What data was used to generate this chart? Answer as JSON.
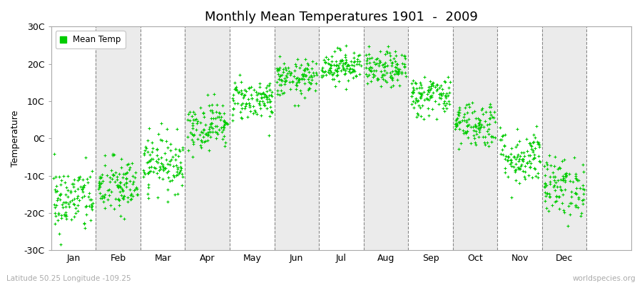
{
  "title": "Monthly Mean Temperatures 1901  -  2009",
  "ylabel": "Temperature",
  "subtitle_left": "Latitude 50.25 Longitude -109.25",
  "subtitle_right": "worldspecies.org",
  "ylim": [
    -30,
    30
  ],
  "yticks": [
    -30,
    -20,
    -10,
    0,
    10,
    20,
    30
  ],
  "ytick_labels": [
    "-30C",
    "-20C",
    "-10C",
    "0C",
    "10C",
    "20C",
    "30C"
  ],
  "months": [
    "Jan",
    "Feb",
    "Mar",
    "Apr",
    "May",
    "Jun",
    "Jul",
    "Aug",
    "Sep",
    "Oct",
    "Nov",
    "Dec"
  ],
  "dot_color": "#00CC00",
  "background_color": "#FFFFFF",
  "band_color_1": "#EBEBEB",
  "band_color_2": "#FFFFFF",
  "legend_label": "Mean Temp",
  "n_years": 109,
  "mean_temps": [
    -16.5,
    -13.0,
    -6.5,
    3.5,
    10.5,
    16.0,
    19.5,
    18.5,
    11.5,
    4.0,
    -5.0,
    -13.0
  ],
  "std_temps": [
    4.5,
    4.0,
    3.8,
    3.2,
    2.8,
    2.5,
    2.2,
    2.4,
    2.8,
    3.2,
    3.8,
    4.0
  ]
}
